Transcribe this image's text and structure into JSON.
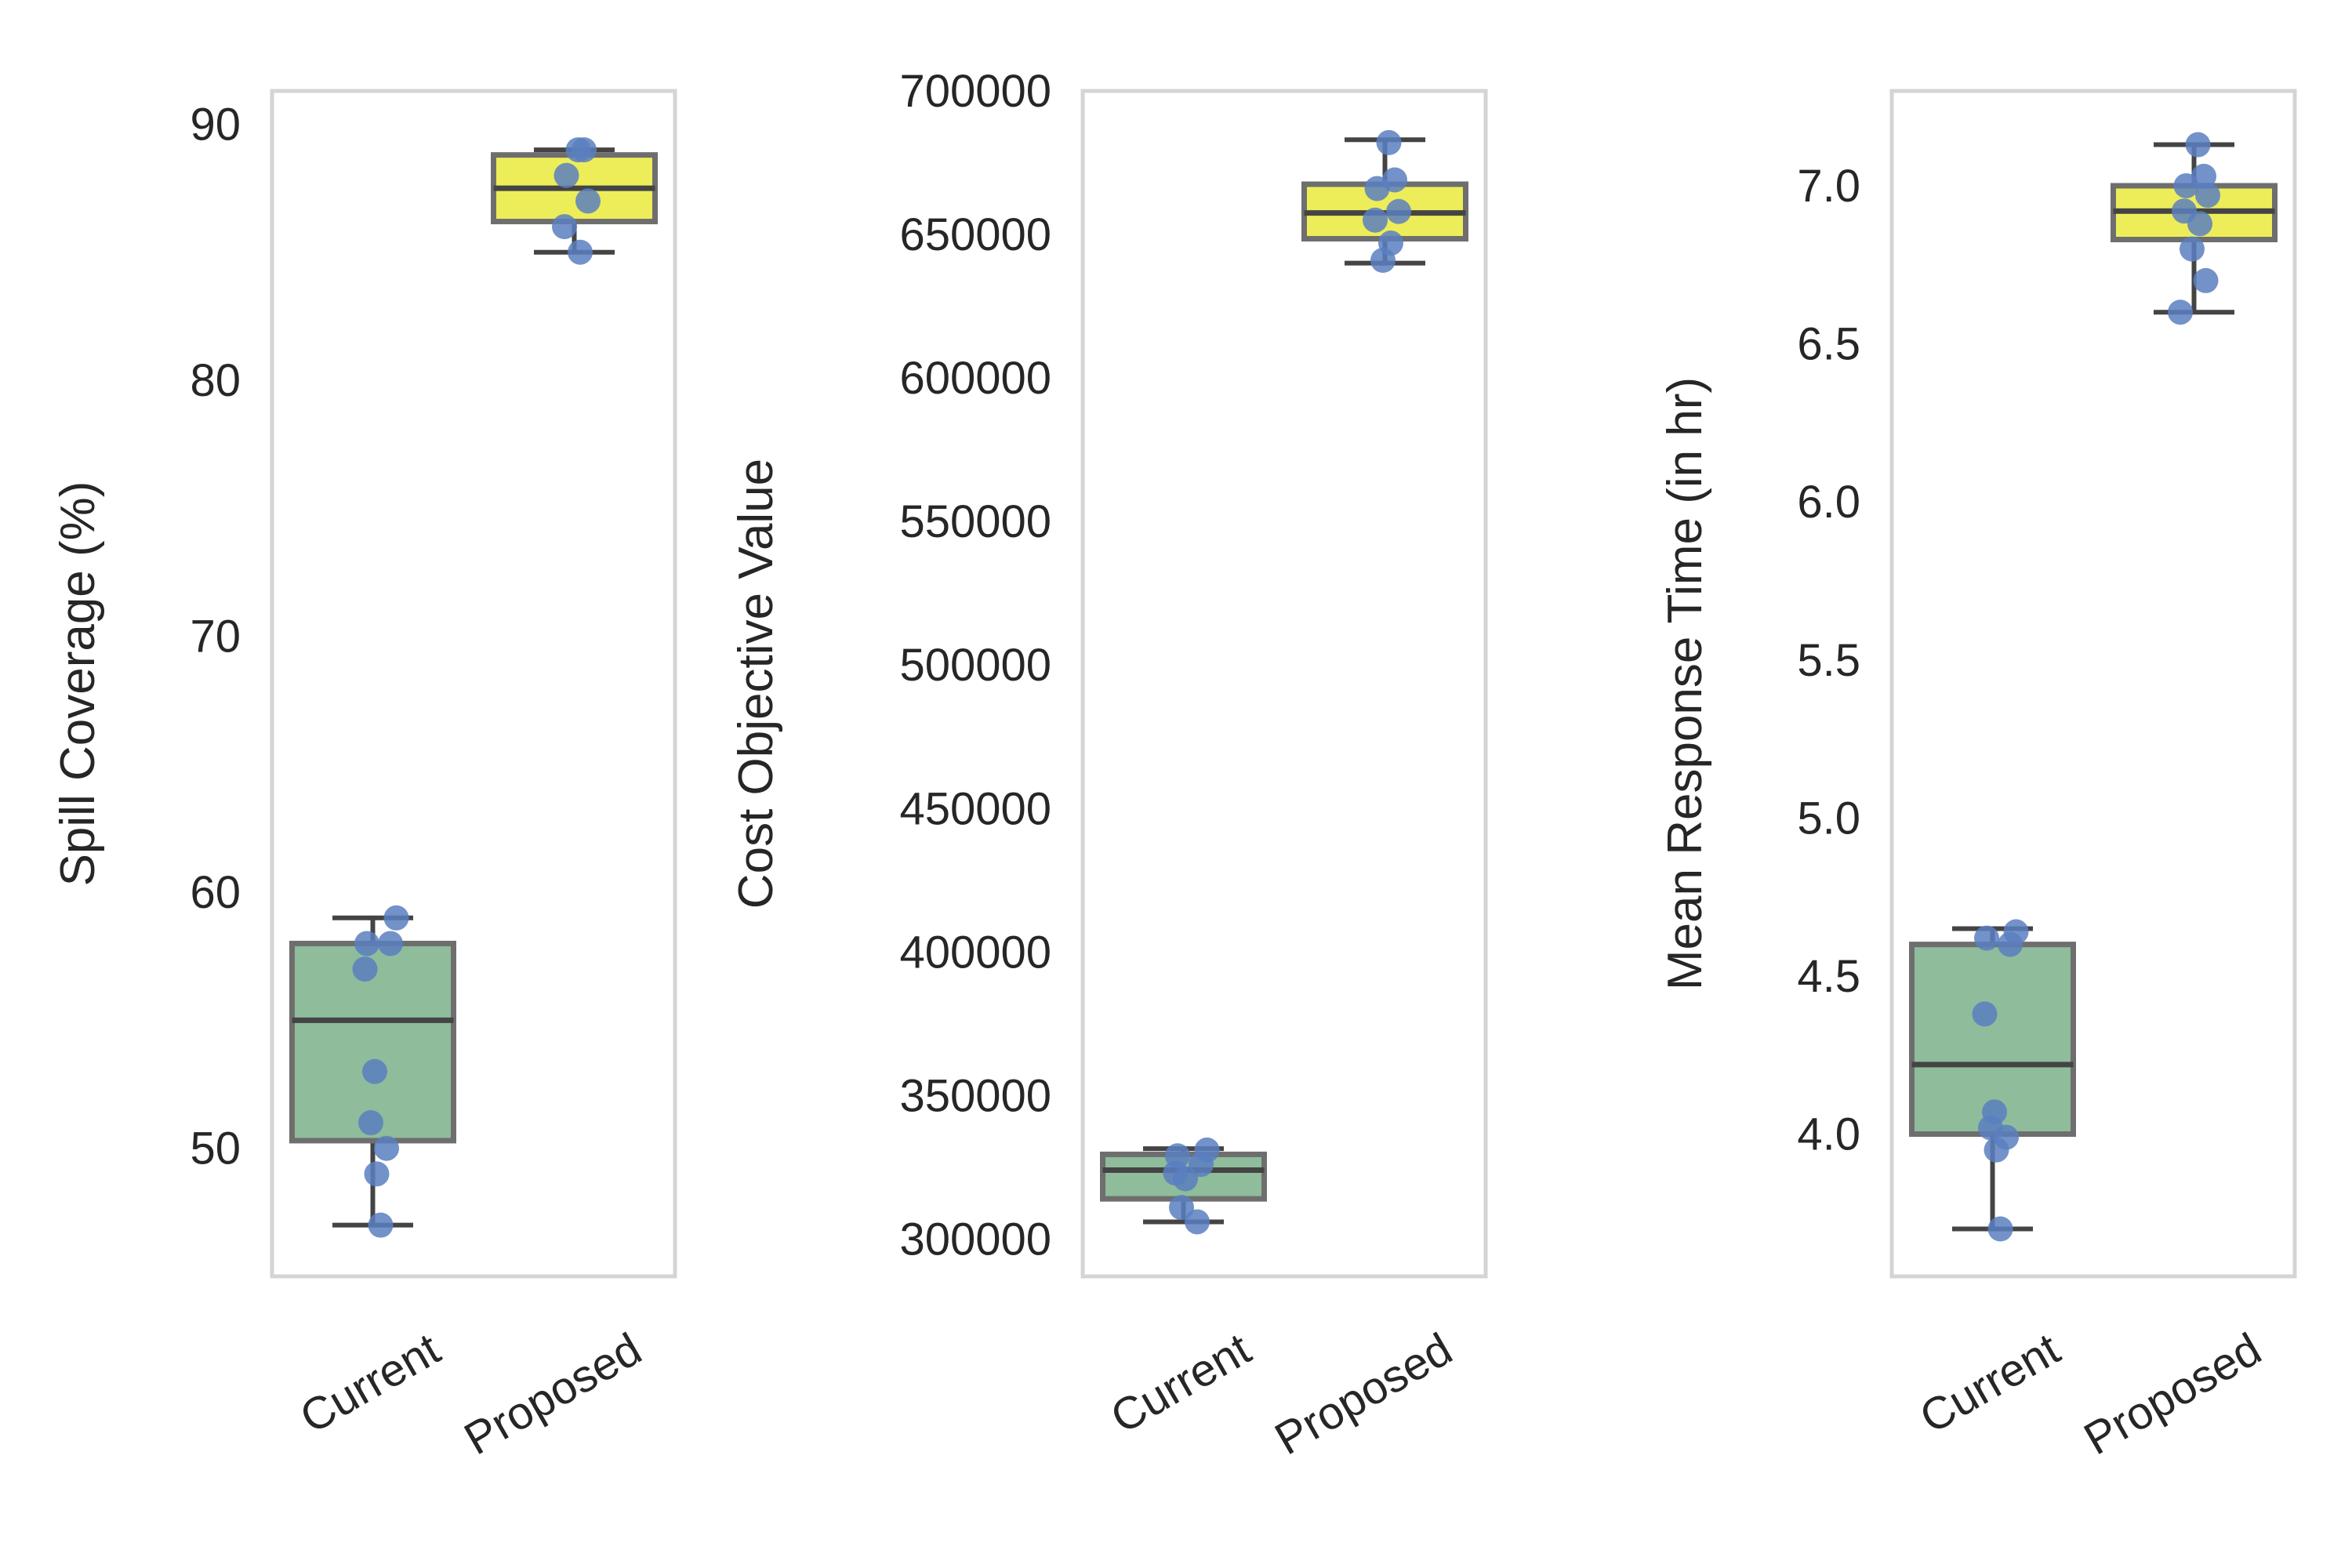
{
  "chart_data": [
    {
      "type": "box",
      "ylabel": "Spill Coverage (%)",
      "categories": [
        "Current",
        "Proposed"
      ],
      "ylim": [
        45,
        91.3
      ],
      "yticks": [
        50,
        60,
        70,
        80,
        90
      ],
      "ytick_labels": [
        "50",
        "60",
        "70",
        "80",
        "90"
      ],
      "boxes": [
        {
          "category": "Current",
          "whisker_low": 47,
          "q1": 50.3,
          "median": 55,
          "q3": 58,
          "whisker_high": 59
        },
        {
          "category": "Proposed",
          "whisker_low": 85,
          "q1": 86.2,
          "median": 87.5,
          "q3": 88.8,
          "whisker_high": 89
        }
      ],
      "points": [
        {
          "category": "Current",
          "values": [
            59,
            58,
            58,
            57,
            53,
            51,
            50,
            49,
            47
          ]
        },
        {
          "category": "Proposed",
          "values": [
            89,
            89,
            88,
            87,
            86,
            85
          ]
        }
      ],
      "grid": false
    },
    {
      "type": "box",
      "ylabel": "Cost Objective Value",
      "categories": [
        "Current",
        "Proposed"
      ],
      "ylim": [
        287000,
        700000
      ],
      "yticks": [
        300000,
        350000,
        400000,
        450000,
        500000,
        550000,
        600000,
        650000,
        700000
      ],
      "ytick_labels": [
        "300000",
        "350000",
        "400000",
        "450000",
        "500000",
        "550000",
        "600000",
        "650000",
        "700000"
      ],
      "boxes": [
        {
          "category": "Current",
          "whisker_low": 306000,
          "q1": 314000,
          "median": 324000,
          "q3": 329500,
          "whisker_high": 331500
        },
        {
          "category": "Proposed",
          "whisker_low": 640000,
          "q1": 648500,
          "median": 657500,
          "q3": 667500,
          "whisker_high": 683000
        }
      ],
      "points": [
        {
          "category": "Current",
          "values": [
            331000,
            329000,
            326000,
            323000,
            321000,
            311000,
            306000
          ]
        },
        {
          "category": "Proposed",
          "values": [
            682000,
            669000,
            666000,
            658000,
            655000,
            647000,
            641000
          ]
        }
      ],
      "grid": false
    },
    {
      "type": "box",
      "ylabel": "Mean Response Time (in hr)",
      "categories": [
        "Current",
        "Proposed"
      ],
      "ylim": [
        3.55,
        7.3
      ],
      "yticks": [
        4.0,
        4.5,
        5.0,
        5.5,
        6.0,
        6.5,
        7.0
      ],
      "ytick_labels": [
        "4.0",
        "4.5",
        "5.0",
        "5.5",
        "6.0",
        "6.5",
        "7.0"
      ],
      "boxes": [
        {
          "category": "Current",
          "whisker_low": 3.7,
          "q1": 4.0,
          "median": 4.22,
          "q3": 4.6,
          "whisker_high": 4.65
        },
        {
          "category": "Proposed",
          "whisker_low": 6.6,
          "q1": 6.83,
          "median": 6.92,
          "q3": 7.0,
          "whisker_high": 7.13
        }
      ],
      "points": [
        {
          "category": "Current",
          "values": [
            4.64,
            4.62,
            4.6,
            4.38,
            4.07,
            4.02,
            3.99,
            3.95,
            3.7
          ]
        },
        {
          "category": "Proposed",
          "values": [
            7.13,
            7.03,
            7.0,
            6.97,
            6.92,
            6.88,
            6.8,
            6.7,
            6.6
          ]
        }
      ],
      "grid": false
    }
  ],
  "colors": {
    "current_box": "#8fbc9b",
    "proposed_box": "#eded5a",
    "box_edge": "#6e6e6e",
    "median_line": "#444444",
    "point": "#5b7fbf",
    "frame": "#d4d4d4"
  }
}
